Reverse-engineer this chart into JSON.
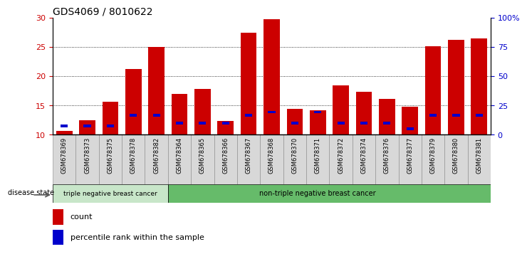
{
  "title": "GDS4069 / 8010622",
  "samples": [
    "GSM678369",
    "GSM678373",
    "GSM678375",
    "GSM678378",
    "GSM678382",
    "GSM678364",
    "GSM678365",
    "GSM678366",
    "GSM678367",
    "GSM678368",
    "GSM678370",
    "GSM678371",
    "GSM678372",
    "GSM678374",
    "GSM678376",
    "GSM678377",
    "GSM678379",
    "GSM678380",
    "GSM678381"
  ],
  "count_values": [
    10.7,
    12.5,
    15.6,
    21.2,
    25.0,
    17.0,
    17.8,
    12.4,
    27.4,
    29.8,
    14.4,
    14.2,
    18.5,
    17.3,
    16.1,
    14.8,
    25.1,
    26.2,
    26.5
  ],
  "percentile_values": [
    11.5,
    11.5,
    11.5,
    13.3,
    13.3,
    12.0,
    12.0,
    12.0,
    13.3,
    13.9,
    12.0,
    13.9,
    12.0,
    12.0,
    12.0,
    11.0,
    13.3,
    13.3,
    13.3
  ],
  "ylim_left": [
    10,
    30
  ],
  "ylim_right": [
    0,
    100
  ],
  "yticks_left": [
    10,
    15,
    20,
    25,
    30
  ],
  "yticks_right": [
    0,
    25,
    50,
    75,
    100
  ],
  "yticklabels_right": [
    "0",
    "25",
    "50",
    "75",
    "100%"
  ],
  "bar_color": "#cc0000",
  "percentile_color": "#0000cc",
  "bar_width": 0.7,
  "group1_label": "triple negative breast cancer",
  "group2_label": "non-triple negative breast cancer",
  "group1_count": 5,
  "group2_count": 14,
  "group1_bg": "#c8e6c9",
  "group2_bg": "#66bb6a",
  "disease_state_label": "disease state",
  "legend_count_label": "count",
  "legend_percentile_label": "percentile rank within the sample",
  "plot_bg": "#ffffff",
  "tick_label_color_left": "#cc0000",
  "tick_label_color_right": "#0000cc",
  "cell_bg": "#d8d8d8",
  "cell_border": "#888888",
  "figure_bg": "#ffffff",
  "title_fontsize": 10,
  "axis_fontsize": 8,
  "label_fontsize": 7,
  "legend_fontsize": 8
}
